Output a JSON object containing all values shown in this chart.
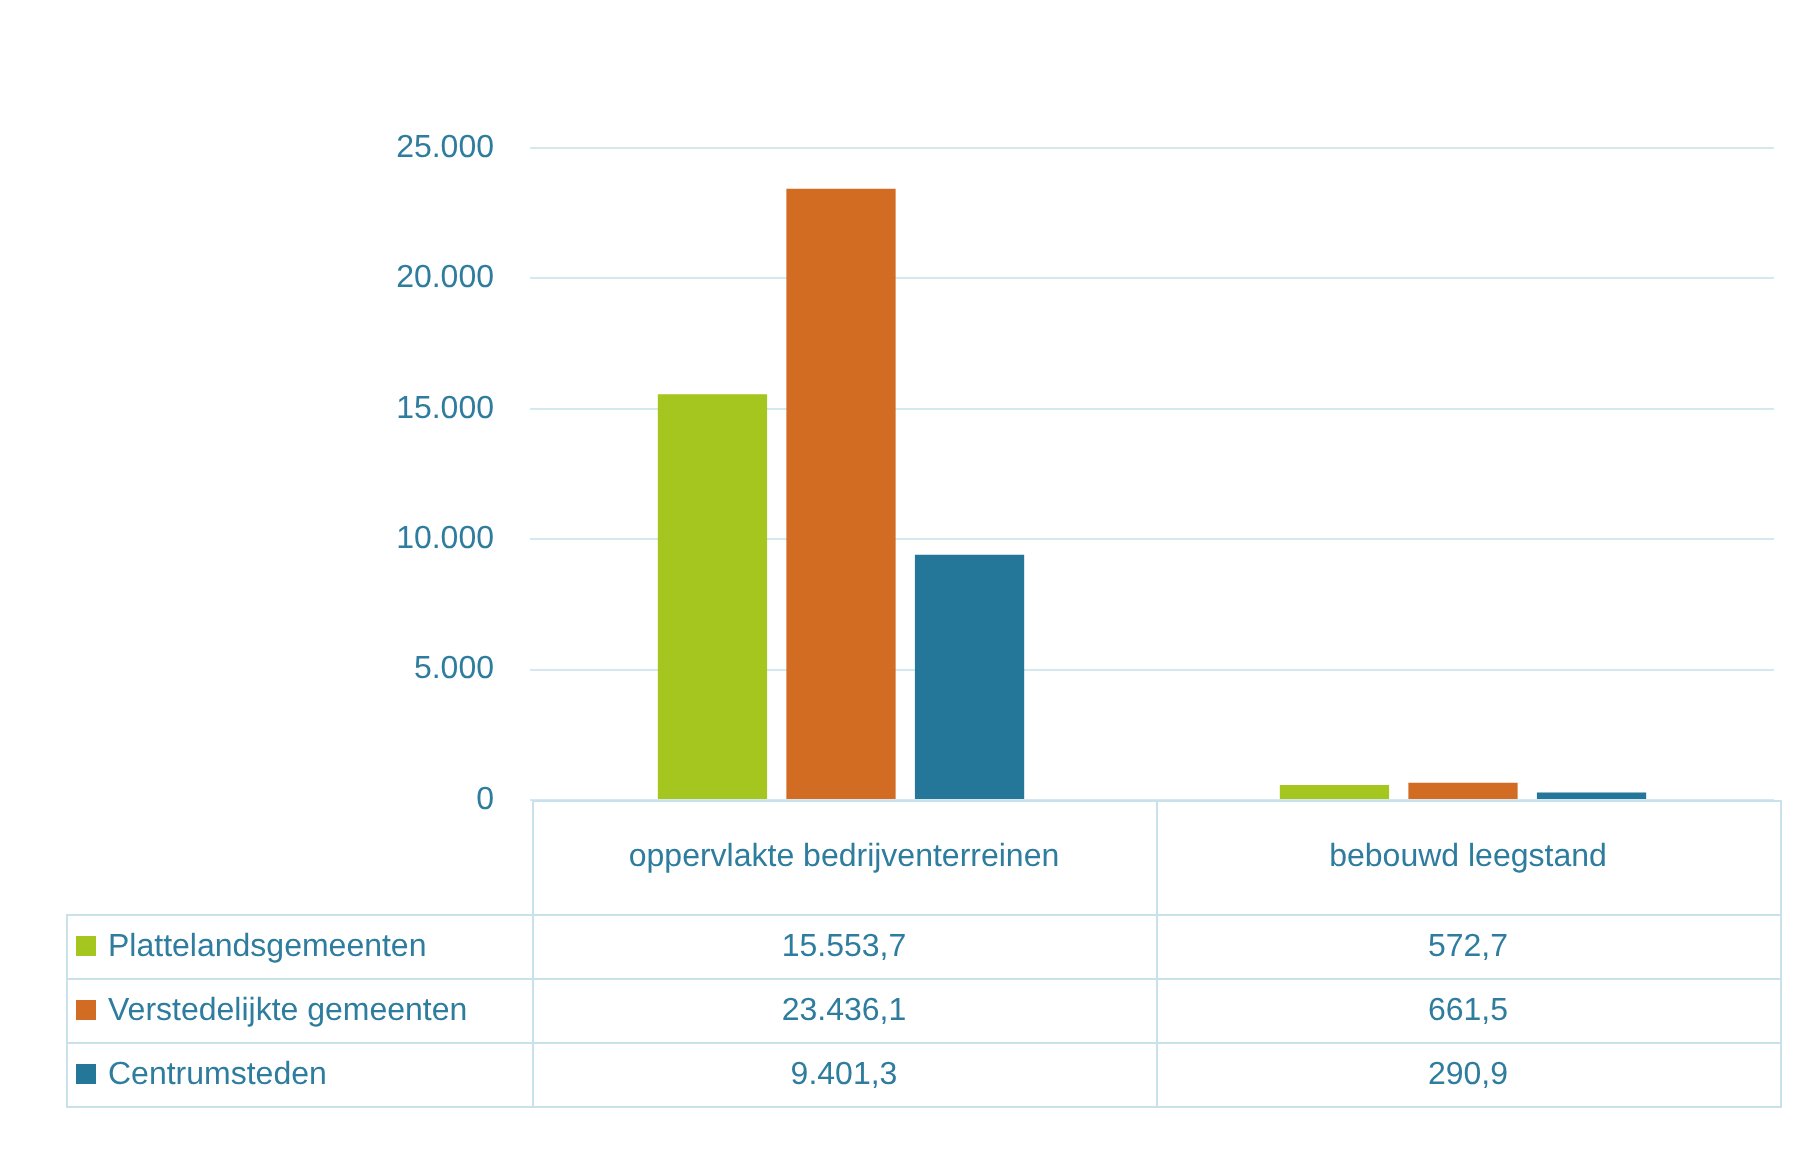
{
  "chart_data": {
    "type": "bar",
    "categories": [
      "oppervlakte bedrijventerreinen",
      "bebouwd leegstand"
    ],
    "series": [
      {
        "name": "Plattelandsgemeenten",
        "color": "#a5c61e",
        "values": [
          15553.7,
          572.7
        ],
        "value_labels": [
          "15.553,7",
          "572,7"
        ]
      },
      {
        "name": "Verstedelijkte gemeenten",
        "color": "#d36c23",
        "values": [
          23436.1,
          661.5
        ],
        "value_labels": [
          "23.436,1",
          "661,5"
        ]
      },
      {
        "name": "Centrumsteden",
        "color": "#25779a",
        "values": [
          9401.3,
          290.9
        ],
        "value_labels": [
          "9.401,3",
          "290,9"
        ]
      }
    ],
    "ylim": [
      0,
      25000
    ],
    "yticks": [
      {
        "value": 0,
        "label": "0"
      },
      {
        "value": 5000,
        "label": "5.000"
      },
      {
        "value": 10000,
        "label": "10.000"
      },
      {
        "value": 15000,
        "label": "15.000"
      },
      {
        "value": 20000,
        "label": "20.000"
      },
      {
        "value": 25000,
        "label": "25.000"
      }
    ],
    "grid": "y",
    "legend": "bottom"
  }
}
